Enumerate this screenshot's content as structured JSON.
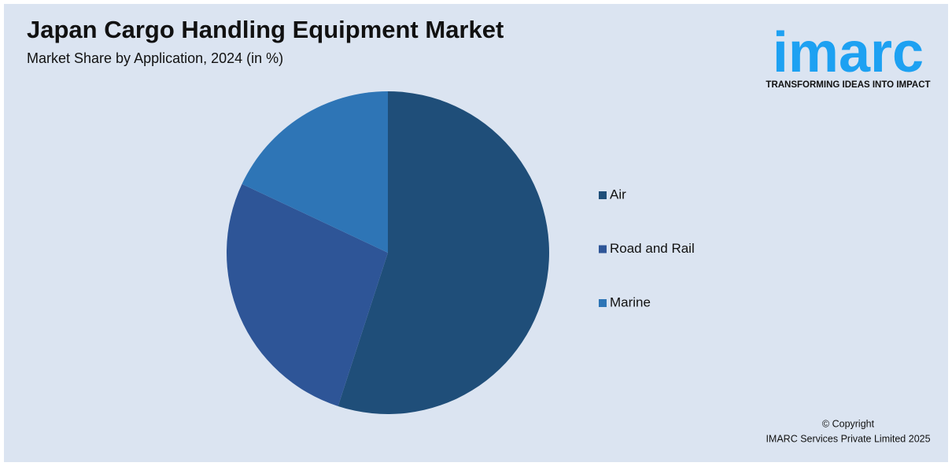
{
  "chart_data": {
    "type": "pie",
    "title": "Japan Cargo Handling Equipment Market",
    "subtitle": "Market Share by Application, 2024 (in %)",
    "categories": [
      "Air",
      "Road and Rail",
      "Marine"
    ],
    "values": [
      55,
      27,
      18
    ],
    "colors": [
      "#1f4e79",
      "#2e5597",
      "#2e75b6"
    ]
  },
  "logo": {
    "name": "imarc",
    "tagline": "TRANSFORMING IDEAS INTO IMPACT"
  },
  "footer": {
    "copyright": "© Copyright",
    "company": "IMARC Services Private Limited 2025"
  }
}
